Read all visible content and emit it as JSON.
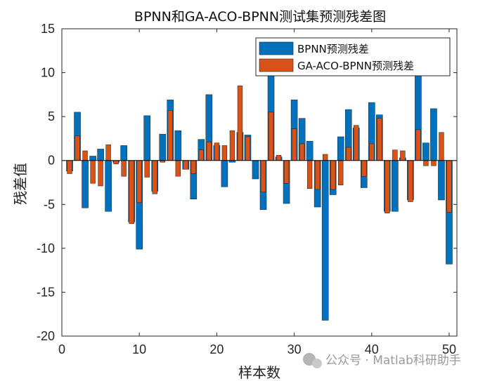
{
  "chart_data": {
    "type": "bar",
    "title": "BPNN和GA-ACO-BPNN测试集预测残差图",
    "xlabel": "样本数",
    "ylabel": "残差值",
    "xlim": [
      0,
      51
    ],
    "ylim": [
      -20,
      15
    ],
    "xticks": [
      0,
      10,
      20,
      30,
      40,
      50
    ],
    "yticks": [
      15,
      10,
      5,
      0,
      -5,
      -10,
      -15,
      -20
    ],
    "legend_position": "top-right",
    "x": [
      1,
      2,
      3,
      4,
      5,
      6,
      7,
      8,
      9,
      10,
      11,
      12,
      13,
      14,
      15,
      16,
      17,
      18,
      19,
      20,
      21,
      22,
      23,
      24,
      25,
      26,
      27,
      28,
      29,
      30,
      31,
      32,
      33,
      34,
      35,
      36,
      37,
      38,
      39,
      40,
      41,
      42,
      43,
      44,
      45,
      46,
      47,
      48,
      49,
      50
    ],
    "series": [
      {
        "name": "BPNN预测残差",
        "color": "#0072BD",
        "values": [
          -1.2,
          5.5,
          -5.4,
          0.5,
          1.3,
          -5.8,
          -0.2,
          1.7,
          -7.0,
          -10.1,
          5.1,
          -3.5,
          3.0,
          6.9,
          3.4,
          -1.0,
          -4.4,
          2.4,
          7.5,
          1.7,
          -3.0,
          -0.2,
          3.2,
          2.9,
          -2.1,
          -5.6,
          10.2,
          0.4,
          -4.9,
          6.9,
          4.8,
          2.2,
          -5.3,
          -18.2,
          -3.9,
          2.7,
          5.8,
          3.7,
          -3.1,
          6.6,
          5.2,
          -5.8,
          -5.8,
          0.3,
          -4.5,
          10.1,
          2.0,
          5.9,
          -4.5,
          -11.8
        ]
      },
      {
        "name": "GA-ACO-BPNN预测残差",
        "color": "#D95319",
        "values": [
          -1.5,
          2.8,
          1.1,
          -2.6,
          -2.9,
          1.8,
          -0.4,
          -1.8,
          -7.2,
          -4.8,
          -1.9,
          -3.8,
          -0.2,
          5.7,
          -1.8,
          -1.0,
          -1.5,
          1.2,
          2.1,
          2.0,
          1.7,
          3.4,
          8.5,
          2.7,
          0.0,
          -3.6,
          5.5,
          0.6,
          -2.6,
          3.6,
          1.9,
          -3.2,
          -3.3,
          0.7,
          -3.3,
          -2.8,
          1.5,
          4.0,
          -1.8,
          1.9,
          4.8,
          -6.0,
          1.2,
          1.1,
          -4.7,
          3.5,
          -0.6,
          -0.6,
          3.2,
          -5.9
        ]
      }
    ]
  },
  "watermark": "公众号 · Matlab科研助手"
}
